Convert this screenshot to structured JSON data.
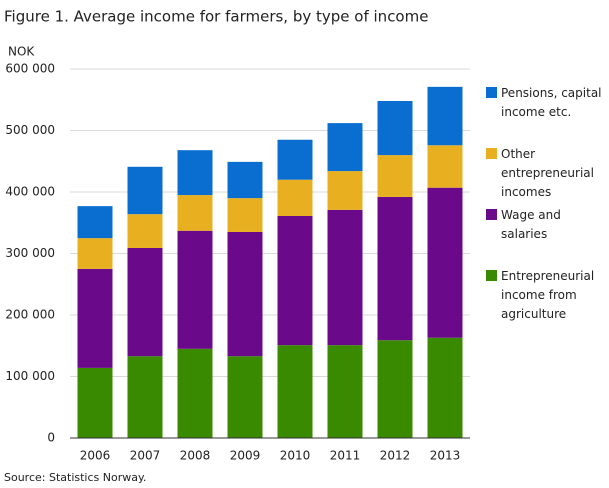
{
  "chart_data": {
    "type": "stacked-bar",
    "title": "Figure 1. Average income for farmers, by type of income",
    "y_label": "NOK",
    "source": "Source: Statistics Norway.",
    "categories": [
      "2006",
      "2007",
      "2008",
      "2009",
      "2010",
      "2011",
      "2012",
      "2013"
    ],
    "series": [
      {
        "name": "Entrepreneurial income from agriculture",
        "color": "#3a8a00",
        "values": [
          114000,
          133000,
          145000,
          133000,
          151000,
          151000,
          159000,
          163000
        ]
      },
      {
        "name": "Wage and salaries",
        "color": "#6a0a8a",
        "values": [
          161000,
          176000,
          192000,
          202000,
          210000,
          220000,
          233000,
          244000
        ]
      },
      {
        "name": "Other entrepreneurial incomes",
        "color": "#e8b020",
        "values": [
          50000,
          55000,
          58000,
          55000,
          59000,
          63000,
          68000,
          69000
        ]
      },
      {
        "name": "Pensions, capital income etc.",
        "color": "#0a6ed0",
        "values": [
          52000,
          77000,
          73000,
          59000,
          65000,
          78000,
          88000,
          95000
        ]
      }
    ],
    "ylim": [
      0,
      600000
    ],
    "yticks": [
      0,
      {
        "value": 100000,
        "label": "100 000"
      },
      {
        "value": 200000,
        "label": "200 000"
      },
      {
        "value": 300000,
        "label": "300 000"
      },
      {
        "value": 400000,
        "label": "400 000"
      },
      {
        "value": 500000,
        "label": "500 000"
      },
      {
        "value": 600000,
        "label": "600 000"
      }
    ],
    "grid": true
  }
}
